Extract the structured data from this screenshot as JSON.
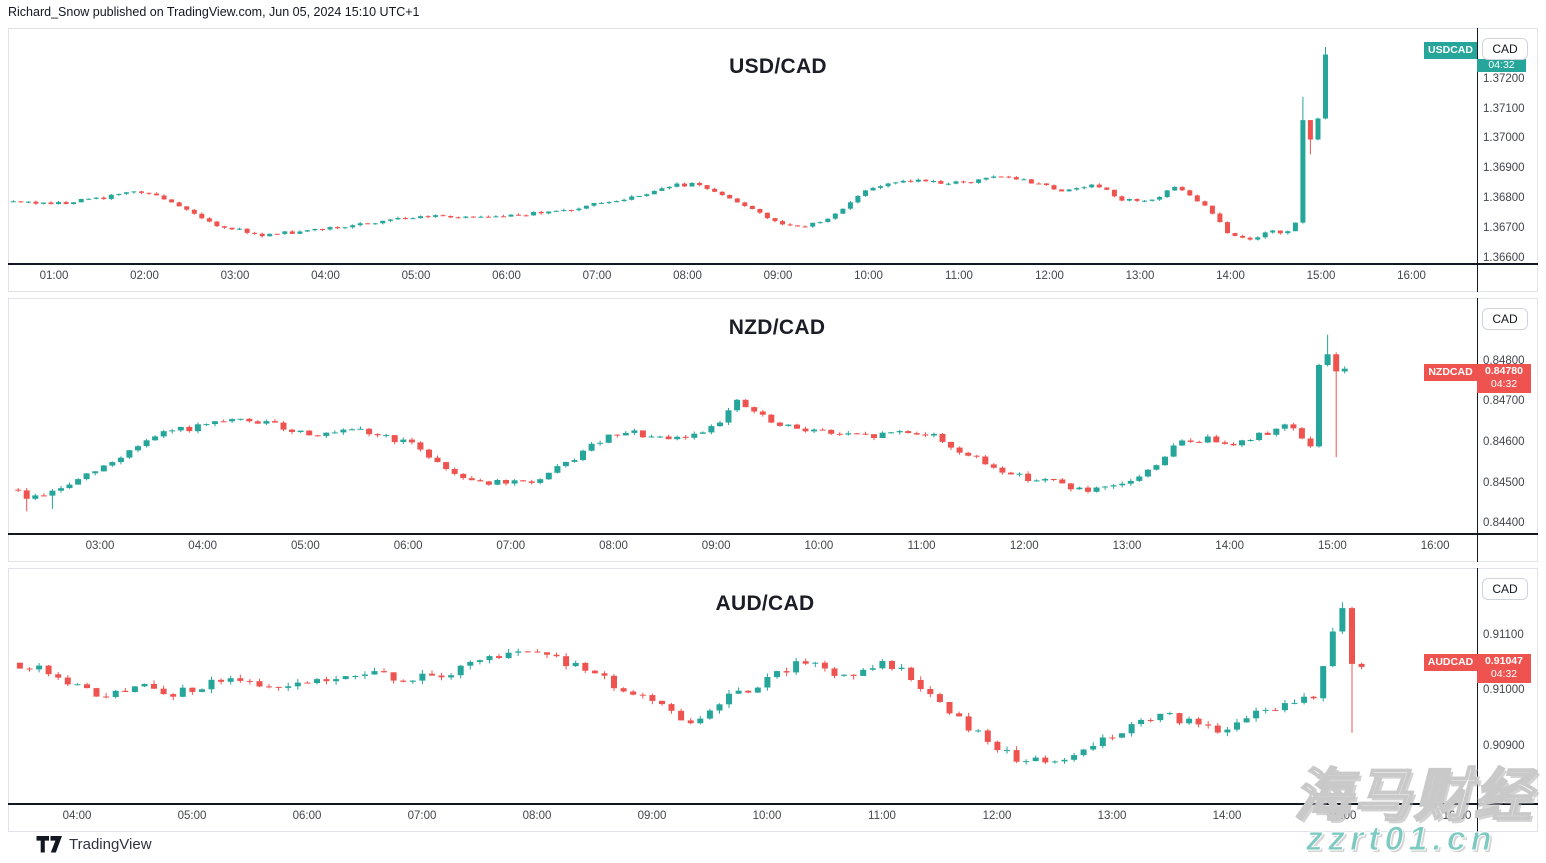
{
  "header": {
    "text": "Richard_Snow published on TradingView.com, Jun 05, 2024 15:10 UTC+1"
  },
  "footer": {
    "brand": "TradingView",
    "logo_icon": "tradingview-logo"
  },
  "watermark": {
    "line1": "海马财经",
    "line2": "zzrt01.cn",
    "accent_color": "#7ecac2"
  },
  "colors": {
    "up": "#26a69a",
    "down": "#ef5350",
    "axis_line": "#131722",
    "panel_border": "#e0e3eb",
    "text": "#131722",
    "muted_text": "#42454d",
    "label_text": "#ffffff"
  },
  "chart_data": [
    {
      "type": "candlestick",
      "interval_minutes": 5,
      "title": "USD/CAD",
      "symbol": "USDCAD",
      "currency_button": "CAD",
      "countdown": "04:32",
      "last_price": null,
      "trend_color": "up",
      "x_ticks": [
        "01:00",
        "02:00",
        "03:00",
        "04:00",
        "05:00",
        "06:00",
        "07:00",
        "08:00",
        "09:00",
        "10:00",
        "11:00",
        "12:00",
        "13:00",
        "14:00",
        "15:00",
        "16:00"
      ],
      "y_ticks": [
        "1.37200",
        "1.37100",
        "1.37000",
        "1.36900",
        "1.36800",
        "1.36700",
        "1.36600"
      ],
      "t_start": 0.55,
      "t_end": 15.06,
      "seed": 5,
      "noise": 6e-05,
      "wick": 5e-05,
      "waypoints": [
        [
          0.55,
          1.3679
        ],
        [
          1.0,
          1.36785
        ],
        [
          1.5,
          1.368
        ],
        [
          1.85,
          1.36825
        ],
        [
          2.1,
          1.3682
        ],
        [
          2.4,
          1.3677
        ],
        [
          2.7,
          1.3672
        ],
        [
          3.0,
          1.367
        ],
        [
          3.3,
          1.3668
        ],
        [
          3.7,
          1.3669
        ],
        [
          4.2,
          1.3671
        ],
        [
          4.7,
          1.3673
        ],
        [
          5.2,
          1.36745
        ],
        [
          5.7,
          1.3674
        ],
        [
          6.2,
          1.3675
        ],
        [
          6.7,
          1.36765
        ],
        [
          7.1,
          1.3679
        ],
        [
          7.5,
          1.3681
        ],
        [
          7.8,
          1.36845
        ],
        [
          8.1,
          1.3685
        ],
        [
          8.4,
          1.3681
        ],
        [
          8.7,
          1.3677
        ],
        [
          9.0,
          1.36715
        ],
        [
          9.3,
          1.3671
        ],
        [
          9.6,
          1.3674
        ],
        [
          10.0,
          1.3684
        ],
        [
          10.4,
          1.36865
        ],
        [
          10.8,
          1.36855
        ],
        [
          11.2,
          1.3686
        ],
        [
          11.5,
          1.3688
        ],
        [
          11.8,
          1.36855
        ],
        [
          12.1,
          1.3683
        ],
        [
          12.5,
          1.36845
        ],
        [
          12.8,
          1.368
        ],
        [
          13.1,
          1.3679
        ],
        [
          13.4,
          1.3684
        ],
        [
          13.7,
          1.3678
        ],
        [
          14.0,
          1.3668
        ],
        [
          14.2,
          1.3666
        ],
        [
          14.45,
          1.3669
        ],
        [
          14.6,
          1.3668
        ],
        [
          14.7,
          1.3672
        ],
        [
          14.75,
          1.3672
        ],
        [
          14.8,
          1.3707
        ],
        [
          14.85,
          1.3704
        ],
        [
          14.9,
          1.36985
        ],
        [
          14.95,
          1.3701
        ],
        [
          15.0,
          1.3719
        ],
        [
          15.05,
          1.3729
        ],
        [
          15.1,
          1.3729
        ]
      ],
      "special_wicks": [
        {
          "t": 14.8,
          "high": 1.37143
        },
        {
          "t": 14.88,
          "low": 1.3695
        },
        {
          "t": 15.05,
          "high": 1.3731
        }
      ]
    },
    {
      "type": "candlestick",
      "interval_minutes": 5,
      "title": "NZD/CAD",
      "symbol": "NZDCAD",
      "currency_button": "CAD",
      "countdown": "04:32",
      "last_price": "0.84780",
      "trend_color": "down",
      "x_ticks": [
        "03:00",
        "04:00",
        "05:00",
        "06:00",
        "07:00",
        "08:00",
        "09:00",
        "10:00",
        "11:00",
        "12:00",
        "13:00",
        "14:00",
        "15:00",
        "16:00"
      ],
      "y_ticks": [
        "0.84800",
        "0.84700",
        "0.84600",
        "0.84500",
        "0.84400"
      ],
      "t_start": 2.12,
      "t_end": 15.16,
      "seed": 9,
      "noise": 8e-05,
      "wick": 6e-05,
      "waypoints": [
        [
          2.12,
          0.8449
        ],
        [
          2.3,
          0.84465
        ],
        [
          2.55,
          0.8448
        ],
        [
          2.8,
          0.8451
        ],
        [
          3.1,
          0.8455
        ],
        [
          3.4,
          0.846
        ],
        [
          3.7,
          0.8463
        ],
        [
          4.0,
          0.8464
        ],
        [
          4.3,
          0.84655
        ],
        [
          4.6,
          0.8465
        ],
        [
          4.9,
          0.8463
        ],
        [
          5.2,
          0.8462
        ],
        [
          5.5,
          0.8463
        ],
        [
          5.8,
          0.84615
        ],
        [
          6.1,
          0.8459
        ],
        [
          6.4,
          0.8453
        ],
        [
          6.7,
          0.84505
        ],
        [
          7.0,
          0.845
        ],
        [
          7.3,
          0.8451
        ],
        [
          7.6,
          0.8456
        ],
        [
          7.9,
          0.8461
        ],
        [
          8.2,
          0.84625
        ],
        [
          8.5,
          0.84605
        ],
        [
          8.8,
          0.8462
        ],
        [
          9.05,
          0.8466
        ],
        [
          9.2,
          0.847
        ],
        [
          9.35,
          0.8468
        ],
        [
          9.6,
          0.8464
        ],
        [
          9.9,
          0.84635
        ],
        [
          10.2,
          0.8462
        ],
        [
          10.5,
          0.84615
        ],
        [
          10.8,
          0.8463
        ],
        [
          11.1,
          0.8462
        ],
        [
          11.4,
          0.84575
        ],
        [
          11.7,
          0.8454
        ],
        [
          12.0,
          0.84515
        ],
        [
          12.3,
          0.84505
        ],
        [
          12.6,
          0.8448
        ],
        [
          12.9,
          0.8449
        ],
        [
          13.2,
          0.8453
        ],
        [
          13.5,
          0.846
        ],
        [
          13.8,
          0.8461
        ],
        [
          14.1,
          0.846
        ],
        [
          14.4,
          0.8463
        ],
        [
          14.6,
          0.8465
        ],
        [
          14.75,
          0.8459
        ],
        [
          14.8,
          0.84585
        ],
        [
          14.85,
          0.8479
        ],
        [
          14.9,
          0.848
        ],
        [
          14.95,
          0.8482
        ],
        [
          15.0,
          0.8478
        ],
        [
          15.05,
          0.84775
        ],
        [
          15.1,
          0.8478
        ],
        [
          15.15,
          0.8478
        ]
      ],
      "special_wicks": [
        {
          "t": 2.3,
          "low": 0.84432
        },
        {
          "t": 2.55,
          "low": 0.84438
        },
        {
          "t": 14.95,
          "high": 0.84866
        },
        {
          "t": 15.04,
          "low": 0.84565
        }
      ]
    },
    {
      "type": "candlestick",
      "interval_minutes": 5,
      "title": "AUD/CAD",
      "symbol": "AUDCAD",
      "currency_button": "CAD",
      "countdown": "04:32",
      "last_price": "0.91047",
      "trend_color": "down",
      "x_ticks": [
        "04:00",
        "05:00",
        "06:00",
        "07:00",
        "08:00",
        "09:00",
        "10:00",
        "11:00",
        "12:00",
        "13:00",
        "14:00",
        "15:00",
        "16:00"
      ],
      "y_ticks": [
        "0.91100",
        "0.91000",
        "0.90900"
      ],
      "t_start": 3.42,
      "t_end": 15.21,
      "seed": 13,
      "noise": 8e-05,
      "wick": 7e-05,
      "waypoints": [
        [
          3.42,
          0.9105
        ],
        [
          3.6,
          0.91045
        ],
        [
          3.8,
          0.9103
        ],
        [
          4.0,
          0.9101
        ],
        [
          4.2,
          0.9099
        ],
        [
          4.4,
          0.91
        ],
        [
          4.6,
          0.91015
        ],
        [
          4.8,
          0.90995
        ],
        [
          5.0,
          0.91
        ],
        [
          5.2,
          0.9102
        ],
        [
          5.4,
          0.91015
        ],
        [
          5.7,
          0.9101
        ],
        [
          6.0,
          0.9102
        ],
        [
          6.3,
          0.91025
        ],
        [
          6.6,
          0.9103
        ],
        [
          6.9,
          0.9102
        ],
        [
          7.2,
          0.9103
        ],
        [
          7.5,
          0.91055
        ],
        [
          7.75,
          0.91065
        ],
        [
          7.95,
          0.9107
        ],
        [
          8.2,
          0.91055
        ],
        [
          8.5,
          0.9103
        ],
        [
          8.8,
          0.90995
        ],
        [
          9.1,
          0.9097
        ],
        [
          9.35,
          0.90945
        ],
        [
          9.6,
          0.90985
        ],
        [
          9.85,
          0.91
        ],
        [
          10.1,
          0.9103
        ],
        [
          10.3,
          0.9106
        ],
        [
          10.5,
          0.9104
        ],
        [
          10.7,
          0.9102
        ],
        [
          10.95,
          0.9105
        ],
        [
          11.2,
          0.91035
        ],
        [
          11.45,
          0.9099
        ],
        [
          11.7,
          0.90945
        ],
        [
          11.95,
          0.90905
        ],
        [
          12.2,
          0.90875
        ],
        [
          12.45,
          0.9087
        ],
        [
          12.7,
          0.9089
        ],
        [
          12.95,
          0.90915
        ],
        [
          13.2,
          0.90945
        ],
        [
          13.45,
          0.90955
        ],
        [
          13.7,
          0.90945
        ],
        [
          13.9,
          0.9093
        ],
        [
          14.1,
          0.90945
        ],
        [
          14.35,
          0.90965
        ],
        [
          14.6,
          0.90985
        ],
        [
          14.8,
          0.9099
        ],
        [
          14.87,
          0.91095
        ],
        [
          14.95,
          0.9112
        ],
        [
          15.0,
          0.9115
        ],
        [
          15.05,
          0.91045
        ],
        [
          15.1,
          0.9106
        ],
        [
          15.15,
          0.91045
        ],
        [
          15.2,
          0.91047
        ]
      ],
      "special_wicks": [
        {
          "t": 15.0,
          "high": 0.9116
        },
        {
          "t": 15.09,
          "low": 0.90925
        }
      ]
    }
  ]
}
